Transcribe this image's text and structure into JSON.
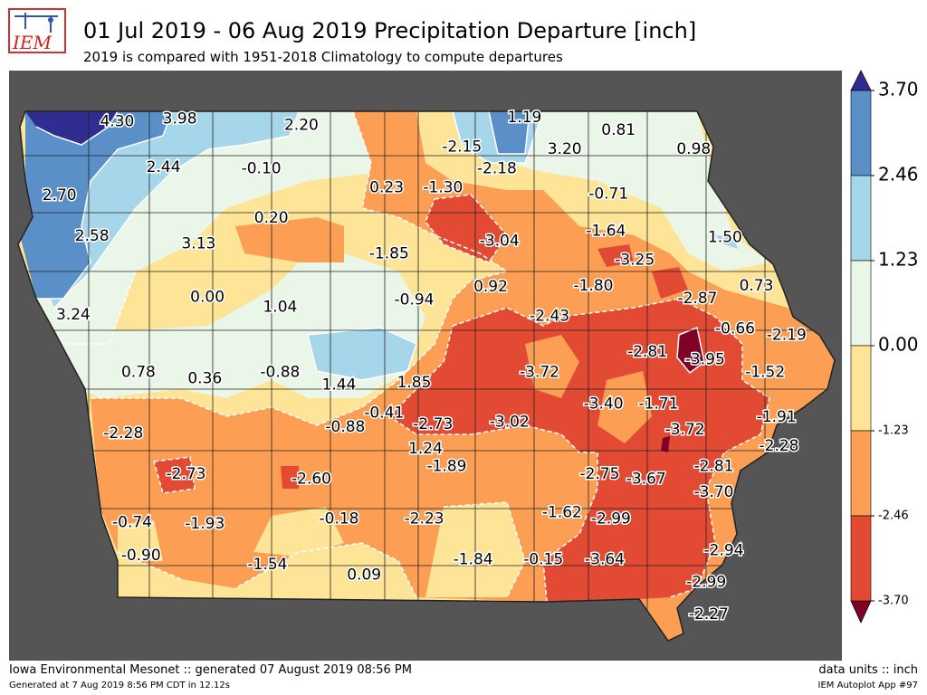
{
  "header": {
    "logo_text": "IEM",
    "title": "01 Jul 2019 - 06 Aug 2019 Precipitation Departure [inch]",
    "subtitle": "2019 is compared with 1951-2018 Climatology to compute departures"
  },
  "footer": {
    "generated": "Iowa Environmental Mesonet :: generated 07 August 2019 08:56 PM",
    "generated_detail": "Generated at 7 Aug 2019 8:56 PM CDT in 12.12s",
    "units": "data units :: inch",
    "app": "IEM Autoplot App #97"
  },
  "colors": {
    "frame_background": "#555555",
    "outline": "#222222",
    "contour_line": "#ffffff",
    "bins": [
      "#800026",
      "#e34a33",
      "#fc9f54",
      "#fee497",
      "#eaf7e8",
      "#a6d6ea",
      "#5a8fc8",
      "#2f2d8f"
    ]
  },
  "legend": {
    "levels": [
      "3.70",
      "2.46",
      "1.23",
      "0.00",
      "-1.23",
      "-2.46",
      "-3.70"
    ],
    "fills": [
      "#5a8fc8",
      "#a6d6ea",
      "#eaf7e8",
      "#fee497",
      "#fc9f54",
      "#e34a33"
    ],
    "over_color": "#2f2d8f",
    "under_color": "#800026"
  },
  "chart_data": {
    "type": "heatmap",
    "title": "01 Jul 2019 - 06 Aug 2019 Precipitation Departure [inch]",
    "subtitle": "2019 is compared with 1951-2018 Climatology to compute departures",
    "units": "inch",
    "contour_levels": [
      -3.7,
      -2.46,
      -1.23,
      0.0,
      1.23,
      2.46,
      3.7
    ],
    "station_values": [
      {
        "label": "4.30",
        "value": 4.3,
        "lon": -95.85,
        "lat": 43.42
      },
      {
        "label": "3.98",
        "value": 3.98,
        "lon": -95.35,
        "lat": 43.44
      },
      {
        "label": "2.20",
        "value": 2.2,
        "lon": -94.38,
        "lat": 43.39
      },
      {
        "label": "1.19",
        "value": 1.19,
        "lon": -92.6,
        "lat": 43.45
      },
      {
        "label": "0.81",
        "value": 0.81,
        "lon": -91.85,
        "lat": 43.35
      },
      {
        "label": "3.20",
        "value": 3.2,
        "lon": -92.28,
        "lat": 43.2
      },
      {
        "label": "-2.15",
        "value": -2.15,
        "lon": -93.1,
        "lat": 43.22
      },
      {
        "label": "0.98",
        "value": 0.98,
        "lon": -91.25,
        "lat": 43.2
      },
      {
        "label": "2.44",
        "value": 2.44,
        "lon": -95.48,
        "lat": 43.06
      },
      {
        "label": "-0.10",
        "value": -0.1,
        "lon": -94.7,
        "lat": 43.05
      },
      {
        "label": "-2.18",
        "value": -2.18,
        "lon": -92.82,
        "lat": 43.05
      },
      {
        "label": "2.70",
        "value": 2.7,
        "lon": -96.31,
        "lat": 42.84
      },
      {
        "label": "0.23",
        "value": 0.23,
        "lon": -93.7,
        "lat": 42.9
      },
      {
        "label": "-1.30",
        "value": -1.3,
        "lon": -93.25,
        "lat": 42.9
      },
      {
        "label": "-0.71",
        "value": -0.71,
        "lon": -91.93,
        "lat": 42.85
      },
      {
        "label": "0.20",
        "value": 0.2,
        "lon": -94.62,
        "lat": 42.66
      },
      {
        "label": "2.58",
        "value": 2.58,
        "lon": -96.05,
        "lat": 42.52
      },
      {
        "label": "3.13",
        "value": 3.13,
        "lon": -95.2,
        "lat": 42.46
      },
      {
        "label": "-3.04",
        "value": -3.04,
        "lon": -92.8,
        "lat": 42.48
      },
      {
        "label": "-1.64",
        "value": -1.64,
        "lon": -91.95,
        "lat": 42.56
      },
      {
        "label": "1.50",
        "value": 1.5,
        "lon": -91.0,
        "lat": 42.51
      },
      {
        "label": "-1.85",
        "value": -1.85,
        "lon": -93.68,
        "lat": 42.38
      },
      {
        "label": "-3.25",
        "value": -3.25,
        "lon": -91.72,
        "lat": 42.33
      },
      {
        "label": "0.92",
        "value": 0.92,
        "lon": -92.87,
        "lat": 42.12
      },
      {
        "label": "-1.80",
        "value": -1.8,
        "lon": -92.05,
        "lat": 42.13
      },
      {
        "label": "0.73",
        "value": 0.73,
        "lon": -90.75,
        "lat": 42.13
      },
      {
        "label": "0.00",
        "value": 0.0,
        "lon": -95.13,
        "lat": 42.04
      },
      {
        "label": "1.04",
        "value": 1.04,
        "lon": -94.55,
        "lat": 41.96
      },
      {
        "label": "-0.94",
        "value": -0.94,
        "lon": -93.48,
        "lat": 42.02
      },
      {
        "label": "-2.87",
        "value": -2.87,
        "lon": -91.22,
        "lat": 42.03
      },
      {
        "label": "3.24",
        "value": 3.24,
        "lon": -96.2,
        "lat": 41.9
      },
      {
        "label": "-2.43",
        "value": -2.43,
        "lon": -92.4,
        "lat": 41.89
      },
      {
        "label": "-0.66",
        "value": -0.66,
        "lon": -90.92,
        "lat": 41.79
      },
      {
        "label": "-2.19",
        "value": -2.19,
        "lon": -90.51,
        "lat": 41.74
      },
      {
        "label": "-2.81",
        "value": -2.81,
        "lon": -91.62,
        "lat": 41.61
      },
      {
        "label": "-3.95",
        "value": -3.95,
        "lon": -91.16,
        "lat": 41.55
      },
      {
        "label": "0.78",
        "value": 0.78,
        "lon": -95.68,
        "lat": 41.45
      },
      {
        "label": "0.36",
        "value": 0.36,
        "lon": -95.15,
        "lat": 41.4
      },
      {
        "label": "-0.88",
        "value": -0.88,
        "lon": -94.55,
        "lat": 41.45
      },
      {
        "label": "-3.72",
        "value": -3.72,
        "lon": -92.48,
        "lat": 41.45
      },
      {
        "label": "-1.52",
        "value": -1.52,
        "lon": -90.68,
        "lat": 41.45
      },
      {
        "label": "1.44",
        "value": 1.44,
        "lon": -94.08,
        "lat": 41.35
      },
      {
        "label": "1.85",
        "value": 1.85,
        "lon": -93.48,
        "lat": 41.37
      },
      {
        "label": "-3.40",
        "value": -3.4,
        "lon": -91.97,
        "lat": 41.2
      },
      {
        "label": "-1.71",
        "value": -1.71,
        "lon": -91.53,
        "lat": 41.2
      },
      {
        "label": "-0.41",
        "value": -0.41,
        "lon": -93.72,
        "lat": 41.13
      },
      {
        "label": "-1.91",
        "value": -1.91,
        "lon": -90.59,
        "lat": 41.1
      },
      {
        "label": "-2.28",
        "value": -2.28,
        "lon": -95.8,
        "lat": 40.97
      },
      {
        "label": "-0.88",
        "value": -0.88,
        "lon": -94.03,
        "lat": 41.02
      },
      {
        "label": "-2.73",
        "value": -2.73,
        "lon": -93.33,
        "lat": 41.04
      },
      {
        "label": "-3.02",
        "value": -3.02,
        "lon": -92.72,
        "lat": 41.06
      },
      {
        "label": "-3.72",
        "value": -3.72,
        "lon": -91.32,
        "lat": 41.0
      },
      {
        "label": "-2.28",
        "value": -2.28,
        "lon": -90.57,
        "lat": 40.87
      },
      {
        "label": "1.24",
        "value": 1.24,
        "lon": -93.39,
        "lat": 40.85
      },
      {
        "label": "-2.81",
        "value": -2.81,
        "lon": -91.09,
        "lat": 40.71
      },
      {
        "label": "-1.89",
        "value": -1.89,
        "lon": -93.22,
        "lat": 40.71
      },
      {
        "label": "-2.73",
        "value": -2.73,
        "lon": -95.3,
        "lat": 40.65
      },
      {
        "label": "-2.75",
        "value": -2.75,
        "lon": -92.0,
        "lat": 40.65
      },
      {
        "label": "-3.67",
        "value": -3.67,
        "lon": -91.63,
        "lat": 40.61
      },
      {
        "label": "-2.60",
        "value": -2.6,
        "lon": -94.3,
        "lat": 40.61
      },
      {
        "label": "-3.70",
        "value": -3.7,
        "lon": -91.09,
        "lat": 40.51
      },
      {
        "label": "-1.62",
        "value": -1.62,
        "lon": -92.3,
        "lat": 40.35
      },
      {
        "label": "-0.18",
        "value": -0.18,
        "lon": -94.08,
        "lat": 40.3
      },
      {
        "label": "-2.23",
        "value": -2.23,
        "lon": -93.4,
        "lat": 40.3
      },
      {
        "label": "-2.99",
        "value": -2.99,
        "lon": -91.91,
        "lat": 40.3
      },
      {
        "label": "-0.74",
        "value": -0.74,
        "lon": -95.73,
        "lat": 40.27
      },
      {
        "label": "-1.93",
        "value": -1.93,
        "lon": -95.15,
        "lat": 40.26
      },
      {
        "label": "-2.94",
        "value": -2.94,
        "lon": -91.01,
        "lat": 40.05
      },
      {
        "label": "-0.90",
        "value": -0.9,
        "lon": -95.66,
        "lat": 40.01
      },
      {
        "label": "-3.64",
        "value": -3.64,
        "lon": -91.96,
        "lat": 39.98
      },
      {
        "label": "-1.54",
        "value": -1.54,
        "lon": -94.65,
        "lat": 39.94
      },
      {
        "label": "-1.84",
        "value": -1.84,
        "lon": -93.01,
        "lat": 39.98
      },
      {
        "label": "-0.15",
        "value": -0.15,
        "lon": -92.45,
        "lat": 39.98
      },
      {
        "label": "-2.99",
        "value": -2.99,
        "lon": -91.15,
        "lat": 39.8
      },
      {
        "label": "0.09",
        "value": 0.09,
        "lon": -93.88,
        "lat": 39.86
      },
      {
        "label": "-2.27",
        "value": -2.27,
        "lon": -91.13,
        "lat": 39.55
      }
    ]
  }
}
